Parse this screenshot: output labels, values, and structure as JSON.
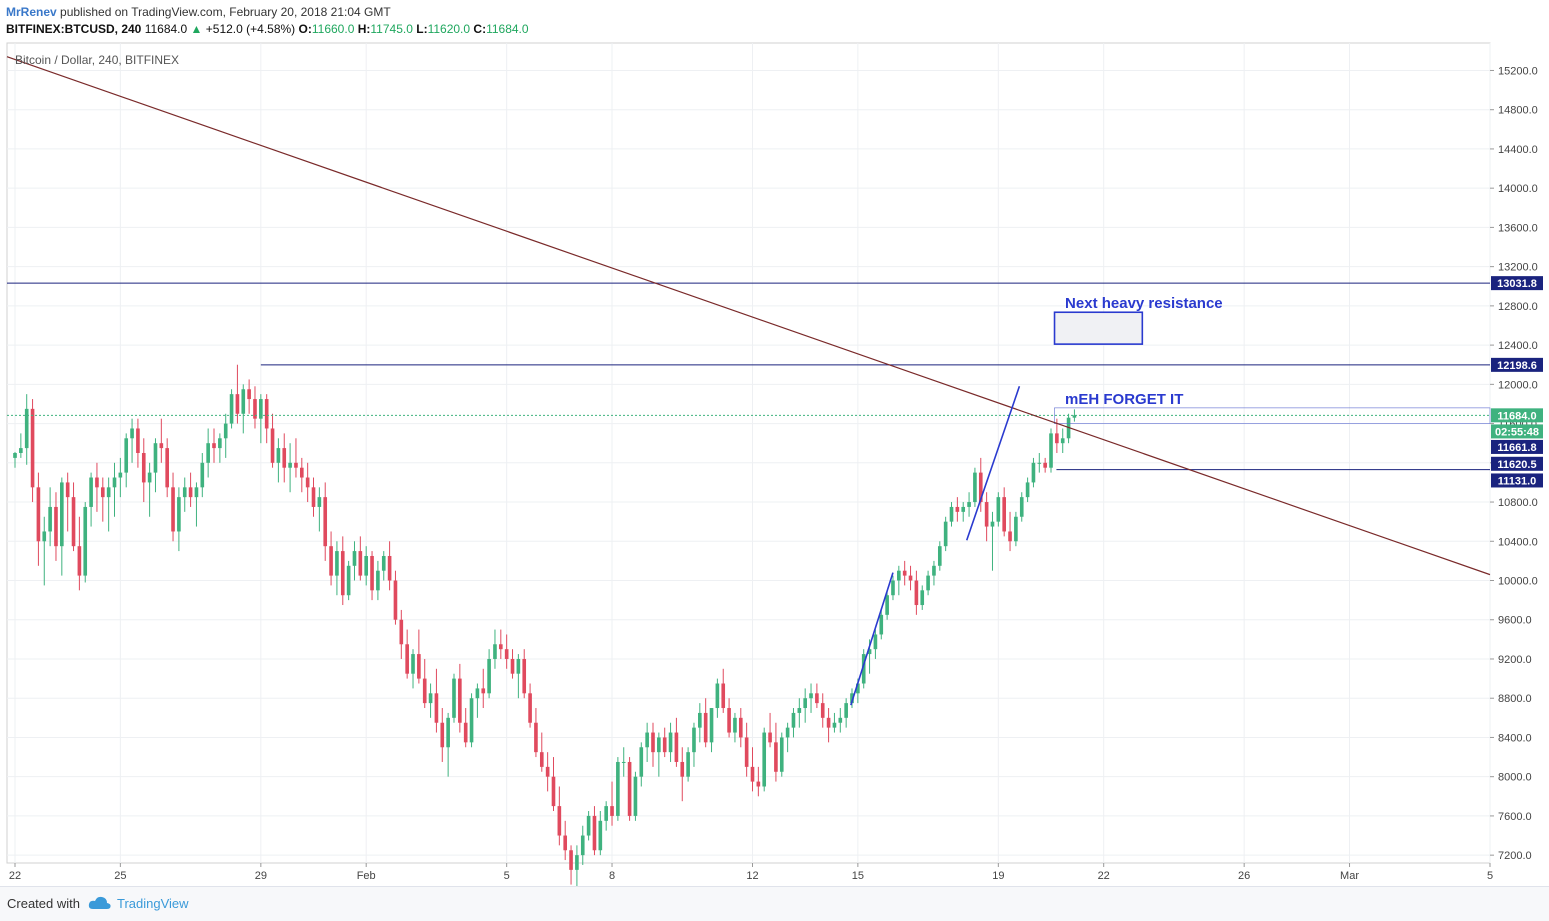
{
  "header": {
    "author": "MrRenev",
    "published_text": "published on TradingView.com, February 20, 2018 21:04 GMT",
    "symbol": "BITFINEX:BTCUSD, 240",
    "last": "11684.0",
    "change": "+512.0 (+4.58%)",
    "o_label": "O:",
    "o": "11660.0",
    "h_label": "H:",
    "h": "11745.0",
    "l_label": "L:",
    "l": "11620.0",
    "c_label": "C:",
    "c": "11684.0"
  },
  "footer": {
    "created_with": "Created with",
    "brand": "TradingView"
  },
  "colors": {
    "up": "#3fb27f",
    "down": "#e04a5e",
    "trendline": "#7a2a2a",
    "level_line": "#1a237e",
    "annotation": "#2a3acf"
  },
  "chart_data": {
    "type": "candlestick",
    "title": "Bitcoin / Dollar, 240, BITFINEX",
    "timeframe": "240",
    "x_ticks": [
      "22",
      "25",
      "29",
      "Feb",
      "5",
      "8",
      "12",
      "15",
      "19",
      "22",
      "26",
      "Mar",
      "5"
    ],
    "y_ticks": [
      7200,
      7600,
      8000,
      8400,
      8800,
      9200,
      9600,
      10000,
      10400,
      10800,
      11200,
      11600,
      12000,
      12400,
      12800,
      13200,
      13600,
      14000,
      14400,
      14800,
      15200
    ],
    "y_tick_labels": [
      "7200.0",
      "7600.0",
      "8000.0",
      "8400.0",
      "8800.0",
      "9200.0",
      "9600.0",
      "10000.0",
      "10400.0",
      "10800.0",
      "11200.0",
      "11600.0",
      "12000.0",
      "12400.0",
      "12800.0",
      "13200.0",
      "13600.0",
      "14000.0",
      "14400.0",
      "14800.0",
      "15200.0"
    ],
    "ylim": [
      7120,
      15480
    ],
    "price_markers": [
      {
        "label": "13031.8",
        "value": 13031.8,
        "style": "navy"
      },
      {
        "label": "12198.6",
        "value": 12198.6,
        "style": "navy"
      },
      {
        "label": "11684.0",
        "value": 11684.0,
        "style": "green"
      },
      {
        "label": "02:55:48",
        "value": 11520,
        "style": "green"
      },
      {
        "label": "11661.8",
        "value": 11361.8,
        "style": "navy"
      },
      {
        "label": "11620.5",
        "value": 11190,
        "style": "navy"
      },
      {
        "label": "11131.0",
        "value": 11020,
        "style": "navy"
      }
    ],
    "horizontal_levels": [
      13031.8,
      12198.6,
      11131.0
    ],
    "last_price": 11684.0,
    "annotations": [
      {
        "text": "Next heavy resistance"
      },
      {
        "text": "mEH FORGET IT"
      }
    ],
    "candles": [
      [
        11250,
        11310,
        11150,
        11300
      ],
      [
        11300,
        11500,
        11250,
        11350
      ],
      [
        11350,
        11900,
        11180,
        11750
      ],
      [
        11750,
        11850,
        10800,
        10950
      ],
      [
        10950,
        11100,
        10150,
        10400
      ],
      [
        10400,
        10650,
        9950,
        10500
      ],
      [
        10500,
        10950,
        10350,
        10750
      ],
      [
        10750,
        10900,
        10200,
        10350
      ],
      [
        10350,
        11050,
        10050,
        11000
      ],
      [
        11000,
        11100,
        10500,
        10850
      ],
      [
        10850,
        11000,
        10300,
        10350
      ],
      [
        10350,
        10650,
        9900,
        10050
      ],
      [
        10050,
        10800,
        9980,
        10750
      ],
      [
        10750,
        11100,
        10550,
        11050
      ],
      [
        11050,
        11200,
        10700,
        10950
      ],
      [
        10950,
        11050,
        10600,
        10850
      ],
      [
        10850,
        11050,
        10500,
        10950
      ],
      [
        10950,
        11200,
        10650,
        11050
      ],
      [
        11050,
        11250,
        10850,
        11100
      ],
      [
        11100,
        11500,
        10950,
        11450
      ],
      [
        11450,
        11650,
        11200,
        11550
      ],
      [
        11550,
        11650,
        11150,
        11300
      ],
      [
        11300,
        11450,
        10800,
        11000
      ],
      [
        11000,
        11200,
        10650,
        11100
      ],
      [
        11100,
        11450,
        10900,
        11400
      ],
      [
        11400,
        11650,
        11200,
        11350
      ],
      [
        11350,
        11450,
        10850,
        10950
      ],
      [
        10950,
        11100,
        10400,
        10500
      ],
      [
        10500,
        10950,
        10300,
        10850
      ],
      [
        10850,
        11050,
        10700,
        10950
      ],
      [
        10950,
        11100,
        10750,
        10850
      ],
      [
        10850,
        11000,
        10550,
        10950
      ],
      [
        10950,
        11300,
        10850,
        11200
      ],
      [
        11200,
        11550,
        11050,
        11400
      ],
      [
        11400,
        11550,
        11200,
        11350
      ],
      [
        11350,
        11500,
        11200,
        11450
      ],
      [
        11450,
        11700,
        11250,
        11600
      ],
      [
        11600,
        11950,
        11550,
        11900
      ],
      [
        11900,
        12200,
        11600,
        11700
      ],
      [
        11700,
        12000,
        11500,
        11950
      ],
      [
        11950,
        12050,
        11700,
        11850
      ],
      [
        11850,
        11980,
        11550,
        11650
      ],
      [
        11650,
        11900,
        11400,
        11850
      ],
      [
        11850,
        11900,
        11400,
        11550
      ],
      [
        11550,
        11700,
        11150,
        11200
      ],
      [
        11200,
        11450,
        11000,
        11350
      ],
      [
        11350,
        11500,
        11000,
        11150
      ],
      [
        11150,
        11400,
        10900,
        11200
      ],
      [
        11200,
        11450,
        11050,
        11150
      ],
      [
        11150,
        11250,
        10900,
        11050
      ],
      [
        11050,
        11200,
        10800,
        10950
      ],
      [
        10950,
        11050,
        10650,
        10750
      ],
      [
        10750,
        10950,
        10500,
        10850
      ],
      [
        10850,
        11000,
        10200,
        10350
      ],
      [
        10350,
        10500,
        9950,
        10050
      ],
      [
        10050,
        10400,
        9850,
        10300
      ],
      [
        10300,
        10450,
        9750,
        9850
      ],
      [
        9850,
        10200,
        9800,
        10150
      ],
      [
        10150,
        10400,
        10000,
        10300
      ],
      [
        10300,
        10450,
        10000,
        10050
      ],
      [
        10050,
        10350,
        9950,
        10250
      ],
      [
        10250,
        10300,
        9800,
        9900
      ],
      [
        9900,
        10200,
        9800,
        10100
      ],
      [
        10100,
        10300,
        10000,
        10250
      ],
      [
        10250,
        10400,
        9900,
        10000
      ],
      [
        10000,
        10100,
        9550,
        9600
      ],
      [
        9600,
        9700,
        9200,
        9350
      ],
      [
        9350,
        9500,
        9000,
        9050
      ],
      [
        9050,
        9300,
        8900,
        9250
      ],
      [
        9250,
        9500,
        8950,
        9000
      ],
      [
        9000,
        9200,
        8700,
        8750
      ],
      [
        8750,
        8950,
        8600,
        8850
      ],
      [
        8850,
        9100,
        8450,
        8550
      ],
      [
        8550,
        8700,
        8150,
        8300
      ],
      [
        8300,
        8650,
        8000,
        8600
      ],
      [
        8600,
        9050,
        8550,
        9000
      ],
      [
        9000,
        9150,
        8450,
        8550
      ],
      [
        8550,
        8700,
        8300,
        8350
      ],
      [
        8350,
        8850,
        8300,
        8800
      ],
      [
        8800,
        8950,
        8600,
        8900
      ],
      [
        8900,
        9100,
        8700,
        8850
      ],
      [
        8850,
        9300,
        8800,
        9200
      ],
      [
        9200,
        9500,
        9100,
        9350
      ],
      [
        9350,
        9500,
        9200,
        9300
      ],
      [
        9300,
        9450,
        9100,
        9200
      ],
      [
        9200,
        9300,
        9000,
        9050
      ],
      [
        9050,
        9250,
        8800,
        9200
      ],
      [
        9200,
        9300,
        8800,
        8850
      ],
      [
        8850,
        8950,
        8500,
        8550
      ],
      [
        8550,
        8700,
        8200,
        8250
      ],
      [
        8250,
        8450,
        8050,
        8100
      ],
      [
        8100,
        8250,
        7850,
        8000
      ],
      [
        8000,
        8200,
        7650,
        7700
      ],
      [
        7700,
        7900,
        7300,
        7400
      ],
      [
        7400,
        7550,
        7150,
        7250
      ],
      [
        7250,
        7300,
        6900,
        7050
      ],
      [
        7050,
        7300,
        6800,
        7200
      ],
      [
        7200,
        7500,
        7100,
        7400
      ],
      [
        7400,
        7650,
        7350,
        7600
      ],
      [
        7600,
        7700,
        7200,
        7250
      ],
      [
        7250,
        7650,
        7200,
        7550
      ],
      [
        7550,
        7750,
        7450,
        7700
      ],
      [
        7700,
        7950,
        7500,
        7600
      ],
      [
        7600,
        8200,
        7550,
        8150
      ],
      [
        8150,
        8300,
        8000,
        8150
      ],
      [
        8150,
        8200,
        7550,
        7600
      ],
      [
        7600,
        8050,
        7550,
        8000
      ],
      [
        8000,
        8350,
        7900,
        8300
      ],
      [
        8300,
        8550,
        8150,
        8450
      ],
      [
        8450,
        8550,
        8100,
        8250
      ],
      [
        8250,
        8450,
        8000,
        8400
      ],
      [
        8400,
        8500,
        8200,
        8250
      ],
      [
        8250,
        8550,
        8150,
        8450
      ],
      [
        8450,
        8600,
        8100,
        8150
      ],
      [
        8150,
        8300,
        7750,
        8000
      ],
      [
        8000,
        8300,
        7950,
        8250
      ],
      [
        8250,
        8550,
        8100,
        8500
      ],
      [
        8500,
        8750,
        8350,
        8650
      ],
      [
        8650,
        8800,
        8300,
        8350
      ],
      [
        8350,
        8700,
        8250,
        8700
      ],
      [
        8700,
        9000,
        8600,
        8950
      ],
      [
        8950,
        9100,
        8650,
        8700
      ],
      [
        8700,
        8800,
        8400,
        8450
      ],
      [
        8450,
        8650,
        8350,
        8600
      ],
      [
        8600,
        8700,
        8300,
        8400
      ],
      [
        8400,
        8550,
        8000,
        8100
      ],
      [
        8100,
        8300,
        7850,
        7950
      ],
      [
        7950,
        8100,
        7800,
        7900
      ],
      [
        7900,
        8500,
        7850,
        8450
      ],
      [
        8450,
        8650,
        8300,
        8350
      ],
      [
        8350,
        8550,
        7950,
        8050
      ],
      [
        8050,
        8450,
        8000,
        8400
      ],
      [
        8400,
        8550,
        8250,
        8500
      ],
      [
        8500,
        8700,
        8400,
        8650
      ],
      [
        8650,
        8800,
        8500,
        8700
      ],
      [
        8700,
        8900,
        8550,
        8800
      ],
      [
        8800,
        8950,
        8650,
        8850
      ],
      [
        8850,
        8950,
        8700,
        8750
      ],
      [
        8750,
        8850,
        8500,
        8600
      ],
      [
        8600,
        8700,
        8350,
        8500
      ],
      [
        8500,
        8650,
        8450,
        8550
      ],
      [
        8550,
        8700,
        8450,
        8600
      ],
      [
        8600,
        8800,
        8500,
        8750
      ],
      [
        8750,
        8900,
        8700,
        8850
      ],
      [
        8850,
        9000,
        8750,
        8950
      ],
      [
        8950,
        9300,
        8900,
        9250
      ],
      [
        9250,
        9400,
        9050,
        9300
      ],
      [
        9300,
        9500,
        9200,
        9450
      ],
      [
        9450,
        9700,
        9400,
        9650
      ],
      [
        9650,
        9900,
        9600,
        9850
      ],
      [
        9850,
        10050,
        9800,
        10000
      ],
      [
        10000,
        10150,
        9850,
        10100
      ],
      [
        10100,
        10200,
        9950,
        10050
      ],
      [
        10050,
        10150,
        9900,
        10000
      ],
      [
        10000,
        10100,
        9650,
        9750
      ],
      [
        9750,
        9950,
        9700,
        9900
      ],
      [
        9900,
        10100,
        9850,
        10050
      ],
      [
        10050,
        10200,
        9950,
        10150
      ],
      [
        10150,
        10400,
        10100,
        10350
      ],
      [
        10350,
        10650,
        10300,
        10600
      ],
      [
        10600,
        10800,
        10550,
        10750
      ],
      [
        10750,
        10850,
        10600,
        10700
      ],
      [
        10700,
        10800,
        10600,
        10750
      ],
      [
        10750,
        10900,
        10650,
        10800
      ],
      [
        10800,
        11150,
        10750,
        11100
      ],
      [
        11100,
        11250,
        10700,
        10800
      ],
      [
        10800,
        10900,
        10400,
        10550
      ],
      [
        10550,
        10700,
        10100,
        10600
      ],
      [
        10600,
        10900,
        10550,
        10850
      ],
      [
        10850,
        10950,
        10450,
        10500
      ],
      [
        10500,
        10700,
        10300,
        10400
      ],
      [
        10400,
        10700,
        10350,
        10650
      ],
      [
        10650,
        10900,
        10600,
        10850
      ],
      [
        10850,
        11050,
        10800,
        11000
      ],
      [
        11000,
        11250,
        10950,
        11200
      ],
      [
        11200,
        11300,
        11100,
        11200
      ],
      [
        11200,
        11250,
        11100,
        11150
      ],
      [
        11150,
        11550,
        11100,
        11500
      ],
      [
        11500,
        11650,
        11300,
        11400
      ],
      [
        11400,
        11550,
        11300,
        11450
      ],
      [
        11450,
        11700,
        11400,
        11660
      ],
      [
        11660,
        11745,
        11620,
        11684
      ]
    ]
  }
}
